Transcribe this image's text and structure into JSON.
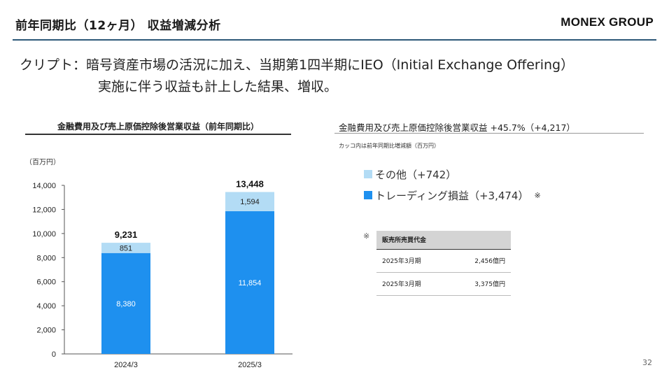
{
  "header": {
    "title": "前年同期比（12ヶ月） 収益増減分析",
    "brand": "MONEX GROUP"
  },
  "summary": {
    "line1": "クリプト：暗号資産市場の活況に加え、当期第1四半期にIEO（Initial Exchange Offering）",
    "line2": "実施に伴う収益も計上した結果、増収。"
  },
  "left_panel": {
    "title": "金融費用及び売上原価控除後営業収益（前年同期比）"
  },
  "right_panel": {
    "title": "金融費用及び売上原価控除後営業収益 +45.7%（+4,217）",
    "note": "カッコ内は前年同期比増減額（百万円）",
    "legend": [
      {
        "label": "その他（+742）",
        "color": "#b3dcf5",
        "mark": ""
      },
      {
        "label": "トレーディング損益（+3,474）",
        "color": "#1e90ef",
        "mark": "※"
      }
    ],
    "reference": {
      "mark": "※",
      "header": "販売所売買代金",
      "rows": [
        {
          "period": "2025年3月期",
          "amount": "2,456億円"
        },
        {
          "period": "2025年3月期",
          "amount": "3,375億円"
        }
      ]
    }
  },
  "chart_data": {
    "type": "bar",
    "stacked": true,
    "unit_label": "（百万円）",
    "categories": [
      "2024/3",
      "2025/3"
    ],
    "series": [
      {
        "name": "トレーディング損益",
        "values": [
          8380,
          11854
        ],
        "labels": [
          "8,380",
          "11,854"
        ],
        "color": "#1e90ef"
      },
      {
        "name": "その他",
        "values": [
          851,
          1594
        ],
        "labels": [
          "851",
          "1,594"
        ],
        "color": "#b3dcf5"
      }
    ],
    "totals": [
      9231,
      13448
    ],
    "total_labels": [
      "9,231",
      "13,448"
    ],
    "ylim": [
      0,
      14000
    ],
    "yticks": [
      0,
      2000,
      4000,
      6000,
      8000,
      10000,
      12000,
      14000
    ],
    "ytick_labels": [
      "0",
      "2,000",
      "4,000",
      "6,000",
      "8,000",
      "10,000",
      "12,000",
      "14,000"
    ],
    "grid": false
  },
  "page_number": "32"
}
